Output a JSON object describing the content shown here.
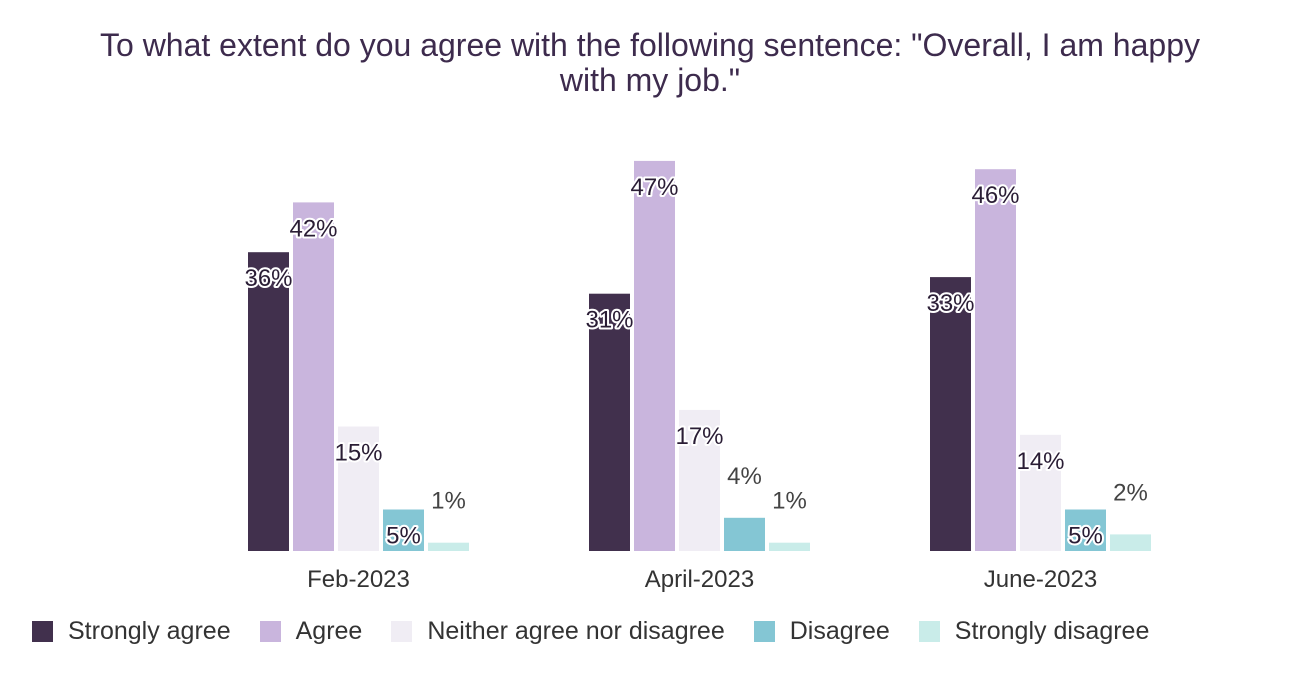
{
  "chart_data": {
    "type": "bar",
    "title_lines": [
      "To what extent do you agree with the following sentence: \"Overall, I am happy",
      "with my job.\""
    ],
    "categories": [
      "Feb-2023",
      "April-2023",
      "June-2023"
    ],
    "series": [
      {
        "name": "Strongly agree",
        "color": "#41304d",
        "values": [
          36,
          31,
          33
        ]
      },
      {
        "name": "Agree",
        "color": "#c9b5dd",
        "values": [
          42,
          47,
          46
        ]
      },
      {
        "name": "Neither agree nor disagree",
        "color": "#f0edf4",
        "values": [
          15,
          17,
          14
        ]
      },
      {
        "name": "Disagree",
        "color": "#84c6d4",
        "values": [
          5,
          4,
          5
        ]
      },
      {
        "name": "Strongly disagree",
        "color": "#c9ece9",
        "values": [
          1,
          1,
          2
        ]
      }
    ],
    "value_suffix": "%",
    "ylim": [
      0,
      50
    ],
    "grid": false,
    "legend_position": "bottom"
  }
}
